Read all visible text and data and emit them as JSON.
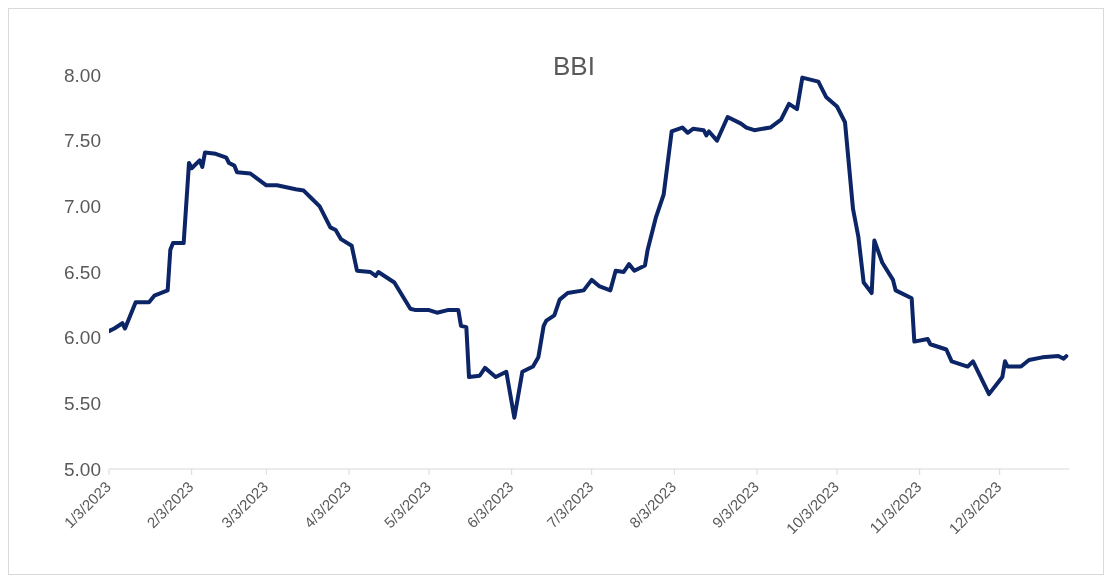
{
  "chart_data": {
    "type": "line",
    "title": "BBI",
    "x": [
      "2023-01-03",
      "2023-01-05",
      "2023-01-08",
      "2023-01-09",
      "2023-01-13",
      "2023-01-18",
      "2023-01-20",
      "2023-01-25",
      "2023-01-26",
      "2023-01-27",
      "2023-01-31",
      "2023-02-02",
      "2023-02-03",
      "2023-02-06",
      "2023-02-07",
      "2023-02-08",
      "2023-02-12",
      "2023-02-16",
      "2023-02-17",
      "2023-02-19",
      "2023-02-20",
      "2023-02-25",
      "2023-03-03",
      "2023-03-07",
      "2023-03-14",
      "2023-03-17",
      "2023-03-20",
      "2023-03-23",
      "2023-03-27",
      "2023-03-29",
      "2023-03-31",
      "2023-04-04",
      "2023-04-06",
      "2023-04-11",
      "2023-04-13",
      "2023-04-14",
      "2023-04-20",
      "2023-04-26",
      "2023-04-28",
      "2023-05-03",
      "2023-05-06",
      "2023-05-10",
      "2023-05-14",
      "2023-05-15",
      "2023-05-17",
      "2023-05-18",
      "2023-05-22",
      "2023-05-24",
      "2023-05-28",
      "2023-06-01",
      "2023-06-04",
      "2023-06-07",
      "2023-06-11",
      "2023-06-13",
      "2023-06-15",
      "2023-06-16",
      "2023-06-19",
      "2023-06-21",
      "2023-06-24",
      "2023-06-30",
      "2023-07-03",
      "2023-07-06",
      "2023-07-10",
      "2023-07-12",
      "2023-07-15",
      "2023-07-17",
      "2023-07-19",
      "2023-07-23",
      "2023-07-24",
      "2023-07-27",
      "2023-07-30",
      "2023-08-02",
      "2023-08-06",
      "2023-08-08",
      "2023-08-10",
      "2023-08-14",
      "2023-08-15",
      "2023-08-16",
      "2023-08-19",
      "2023-08-23",
      "2023-08-28",
      "2023-08-30",
      "2023-09-02",
      "2023-09-08",
      "2023-09-12",
      "2023-09-15",
      "2023-09-18",
      "2023-09-20",
      "2023-09-26",
      "2023-09-29",
      "2023-10-03",
      "2023-10-06",
      "2023-10-09",
      "2023-10-11",
      "2023-10-13",
      "2023-10-16",
      "2023-10-17",
      "2023-10-20",
      "2023-10-24",
      "2023-10-25",
      "2023-10-31",
      "2023-11-01",
      "2023-11-06",
      "2023-11-07",
      "2023-11-13",
      "2023-11-15",
      "2023-11-21",
      "2023-11-23",
      "2023-11-29",
      "2023-12-04",
      "2023-12-05",
      "2023-12-06",
      "2023-12-11",
      "2023-12-14",
      "2023-12-19",
      "2023-12-25",
      "2023-12-27",
      "2023-12-28"
    ],
    "series": [
      {
        "color": "#0b2566",
        "values": [
          6.05,
          6.07,
          6.11,
          6.07,
          6.27,
          6.27,
          6.32,
          6.36,
          6.67,
          6.72,
          6.72,
          7.33,
          7.29,
          7.35,
          7.3,
          7.41,
          7.4,
          7.37,
          7.33,
          7.31,
          7.26,
          7.25,
          7.16,
          7.16,
          7.13,
          7.12,
          7.06,
          7.0,
          6.84,
          6.82,
          6.75,
          6.7,
          6.51,
          6.5,
          6.47,
          6.5,
          6.42,
          6.22,
          6.21,
          6.21,
          6.19,
          6.21,
          6.21,
          6.09,
          6.08,
          5.7,
          5.71,
          5.77,
          5.7,
          5.74,
          5.39,
          5.74,
          5.78,
          5.85,
          6.09,
          6.13,
          6.17,
          6.29,
          6.34,
          6.36,
          6.44,
          6.39,
          6.36,
          6.51,
          6.5,
          6.56,
          6.51,
          6.55,
          6.67,
          6.91,
          7.09,
          7.57,
          7.6,
          7.56,
          7.59,
          7.58,
          7.54,
          7.57,
          7.5,
          7.68,
          7.63,
          7.6,
          7.58,
          7.6,
          7.66,
          7.78,
          7.74,
          7.98,
          7.95,
          7.83,
          7.76,
          7.64,
          6.98,
          6.77,
          6.42,
          6.34,
          6.74,
          6.57,
          6.44,
          6.36,
          6.3,
          5.97,
          5.99,
          5.95,
          5.91,
          5.82,
          5.78,
          5.82,
          5.57,
          5.7,
          5.82,
          5.78,
          5.78,
          5.83,
          5.85,
          5.86,
          5.84,
          5.86
        ]
      }
    ],
    "xlim": [
      "2023-01-03",
      "2023-12-29"
    ],
    "xticks": [
      {
        "value": "2023-01-03",
        "label": "1/3/2023"
      },
      {
        "value": "2023-02-03",
        "label": "2/3/2023"
      },
      {
        "value": "2023-03-03",
        "label": "3/3/2023"
      },
      {
        "value": "2023-04-03",
        "label": "4/3/2023"
      },
      {
        "value": "2023-05-03",
        "label": "5/3/2023"
      },
      {
        "value": "2023-06-03",
        "label": "6/3/2023"
      },
      {
        "value": "2023-07-03",
        "label": "7/3/2023"
      },
      {
        "value": "2023-08-03",
        "label": "8/3/2023"
      },
      {
        "value": "2023-09-03",
        "label": "9/3/2023"
      },
      {
        "value": "2023-10-03",
        "label": "10/3/2023"
      },
      {
        "value": "2023-11-03",
        "label": "11/3/2023"
      },
      {
        "value": "2023-12-03",
        "label": "12/3/2023"
      }
    ],
    "ylim": [
      5,
      8
    ],
    "yticks": [
      {
        "value": 5,
        "label": "5.00"
      },
      {
        "value": 5.5,
        "label": "5.50"
      },
      {
        "value": 6,
        "label": "6.00"
      },
      {
        "value": 6.5,
        "label": "6.50"
      },
      {
        "value": 7,
        "label": "7.00"
      },
      {
        "value": 7.5,
        "label": "7.50"
      },
      {
        "value": 8,
        "label": "8.00"
      }
    ],
    "grid": false,
    "legend": false,
    "marker": "none",
    "line_style": "solid"
  }
}
